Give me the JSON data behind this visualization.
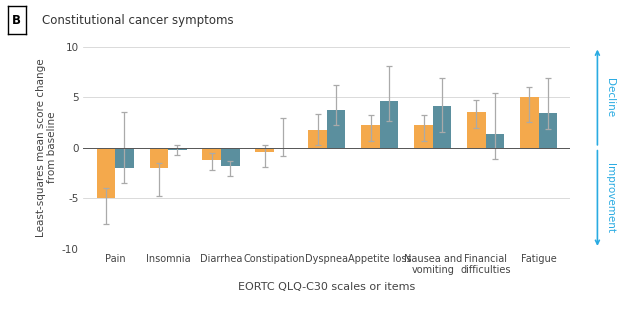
{
  "title": "Constitutional cancer symptoms",
  "panel_label": "B",
  "categories": [
    "Pain",
    "Insomnia",
    "Diarrhea",
    "Constipation",
    "Dyspnea",
    "Appetite loss",
    "Nausea and\nvomiting",
    "Financial\ndifficulties",
    "Fatigue"
  ],
  "orange_values": [
    -5.0,
    -2.0,
    -1.2,
    -0.4,
    1.8,
    2.2,
    2.2,
    3.5,
    5.0
  ],
  "teal_values": [
    -2.0,
    -0.2,
    -1.8,
    -0.05,
    3.7,
    4.6,
    4.1,
    1.4,
    3.4
  ],
  "orange_err_low": [
    2.5,
    2.8,
    1.0,
    1.5,
    1.5,
    1.5,
    1.5,
    1.5,
    2.5
  ],
  "orange_err_high": [
    1.0,
    0.5,
    0.7,
    0.7,
    1.5,
    1.0,
    1.0,
    1.2,
    1.0
  ],
  "teal_err_low": [
    1.5,
    0.5,
    1.0,
    0.8,
    1.5,
    2.0,
    2.5,
    2.5,
    1.5
  ],
  "teal_err_high": [
    5.5,
    0.5,
    0.5,
    3.0,
    2.5,
    3.5,
    2.8,
    4.0,
    3.5
  ],
  "orange_color": "#F4A94C",
  "teal_color": "#5B8F9E",
  "bar_width": 0.35,
  "ylim": [
    -10,
    10
  ],
  "yticks": [
    -10,
    -5,
    0,
    5,
    10
  ],
  "ylabel": "Least-squares mean score change\nfrom baseline",
  "xlabel": "EORTC QLQ-C30 scales or items",
  "decline_label": "Decline",
  "improvement_label": "Improvement",
  "arrow_color": "#29ABE2",
  "grid_color": "#CCCCCC",
  "bg_color": "#FFFFFF",
  "font_color": "#444444",
  "err_color": "#AAAAAA"
}
